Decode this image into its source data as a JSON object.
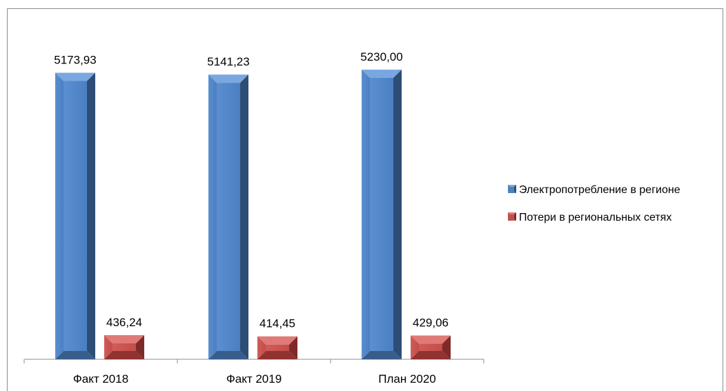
{
  "chart_data": {
    "type": "bar",
    "categories": [
      "Факт 2018",
      "Факт 2019",
      "План 2020"
    ],
    "series": [
      {
        "name": "Электропотребление в регионе",
        "values": [
          5173.93,
          5141.23,
          5230.0
        ],
        "labels": [
          "5173,93",
          "5141,23",
          "5230,00"
        ],
        "color": "#4f81bd"
      },
      {
        "name": "Потери в региональных сетях",
        "values": [
          436.24,
          414.45,
          429.06
        ],
        "labels": [
          "436,24",
          "414,45",
          "429,06"
        ],
        "color": "#c0504d"
      }
    ],
    "title": "",
    "xlabel": "",
    "ylabel": "",
    "legend_position": "right",
    "grid": false,
    "style": "3d-bar"
  }
}
